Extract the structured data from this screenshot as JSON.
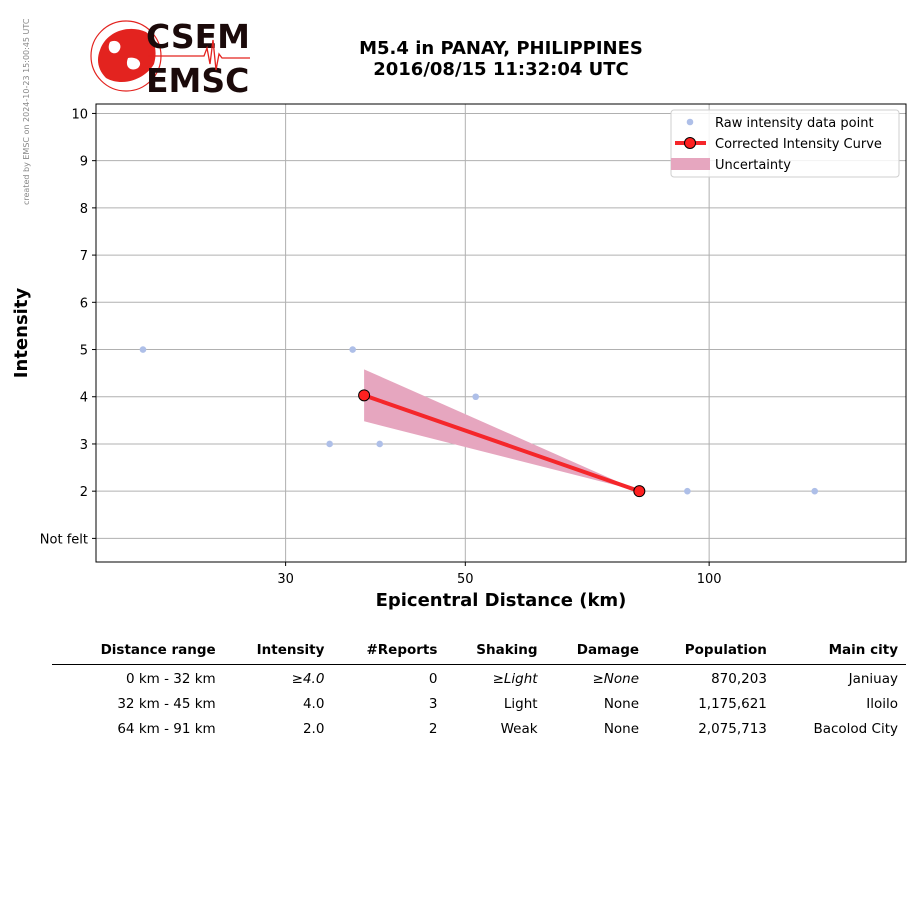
{
  "side_note": "created by EMSC on 2024-10-23 15:00:45 UTC",
  "logo": {
    "line1": "CSEM",
    "line2": "EMSC",
    "color": "#e3231f",
    "text_color": "#1b0a0a"
  },
  "title": {
    "line1": "M5.4 in PANAY, PHILIPPINES",
    "line2": "2016/08/15 11:32:04 UTC"
  },
  "chart_data": {
    "type": "line",
    "xlabel": "Epicentral Distance (km)",
    "ylabel": "Intensity",
    "x_scale": "log",
    "xlim": [
      17.5,
      175
    ],
    "ylim": [
      0.5,
      10.2
    ],
    "x_ticks": [
      30,
      50,
      100
    ],
    "y_ticks": [
      {
        "value": 1,
        "label": "Not felt"
      },
      {
        "value": 2,
        "label": "2"
      },
      {
        "value": 3,
        "label": "3"
      },
      {
        "value": 4,
        "label": "4"
      },
      {
        "value": 5,
        "label": "5"
      },
      {
        "value": 6,
        "label": "6"
      },
      {
        "value": 7,
        "label": "7"
      },
      {
        "value": 8,
        "label": "8"
      },
      {
        "value": 9,
        "label": "9"
      },
      {
        "value": 10,
        "label": "10"
      }
    ],
    "grid": true,
    "legend_position": "top-right",
    "series": [
      {
        "name": "Raw intensity data point",
        "kind": "scatter",
        "color": "#aebfe8",
        "points": [
          [
            20,
            5
          ],
          [
            34,
            3
          ],
          [
            36.3,
            5
          ],
          [
            39.2,
            3
          ],
          [
            51.5,
            4
          ],
          [
            94,
            2
          ],
          [
            135,
            2
          ]
        ]
      },
      {
        "name": "Corrected Intensity Curve",
        "kind": "line",
        "color": "#f5262a",
        "marker_color": "#ff2020",
        "points": [
          [
            37.5,
            4.03
          ],
          [
            82,
            2.0
          ]
        ]
      },
      {
        "name": "Uncertainty",
        "kind": "band",
        "color": "#e6a6bf",
        "x": [
          37.5,
          82
        ],
        "lower": [
          3.48,
          2.0
        ],
        "upper": [
          4.58,
          2.0
        ]
      }
    ]
  },
  "table": {
    "headers": [
      "Distance range",
      "Intensity",
      "#Reports",
      "Shaking",
      "Damage",
      "Population",
      "Main city"
    ],
    "rows": [
      [
        "0 km -   32 km",
        "≥4.0",
        "0",
        "≥Light",
        "≥None",
        "870,203",
        "Janiuay"
      ],
      [
        "32 km -   45 km",
        "4.0",
        "3",
        "Light",
        "None",
        "1,175,621",
        "Iloilo"
      ],
      [
        "64 km -   91 km",
        "2.0",
        "2",
        "Weak",
        "None",
        "2,075,713",
        "Bacolod City"
      ]
    ]
  }
}
